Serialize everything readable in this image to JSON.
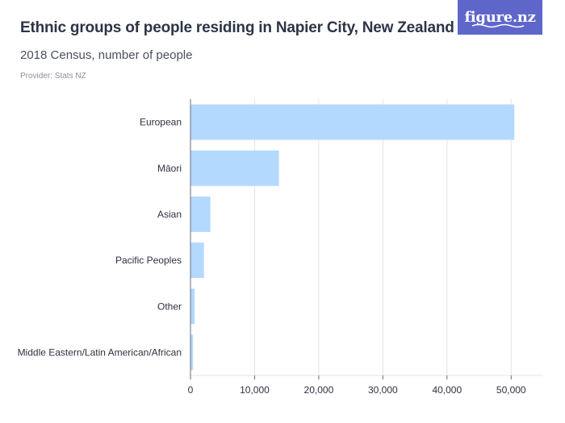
{
  "header": {
    "title": "Ethnic groups of people residing in Napier City, New Zealand",
    "subtitle": "2018 Census, number of people",
    "provider": "Provider: Stats NZ",
    "logo_text": "figure.nz"
  },
  "colors": {
    "bar": "#b3d9ff",
    "gridline": "#e3e3e8",
    "axis": "#6b6b78",
    "logo_bg": "#5f66c9"
  },
  "chart_data": {
    "type": "bar",
    "orientation": "horizontal",
    "title": "Ethnic groups of people residing in Napier City, New Zealand",
    "subtitle": "2018 Census, number of people",
    "categories": [
      "European",
      "Māori",
      "Asian",
      "Pacific Peoples",
      "Other",
      "Middle Eastern/Latin American/African"
    ],
    "values": [
      50500,
      13800,
      3100,
      2100,
      650,
      400
    ],
    "xlim": [
      0,
      55000
    ],
    "xticks": [
      0,
      10000,
      20000,
      30000,
      40000,
      50000
    ],
    "xtick_labels": [
      "0",
      "10,000",
      "20,000",
      "30,000",
      "40,000",
      "50,000"
    ],
    "grid": true,
    "legend": "none"
  }
}
